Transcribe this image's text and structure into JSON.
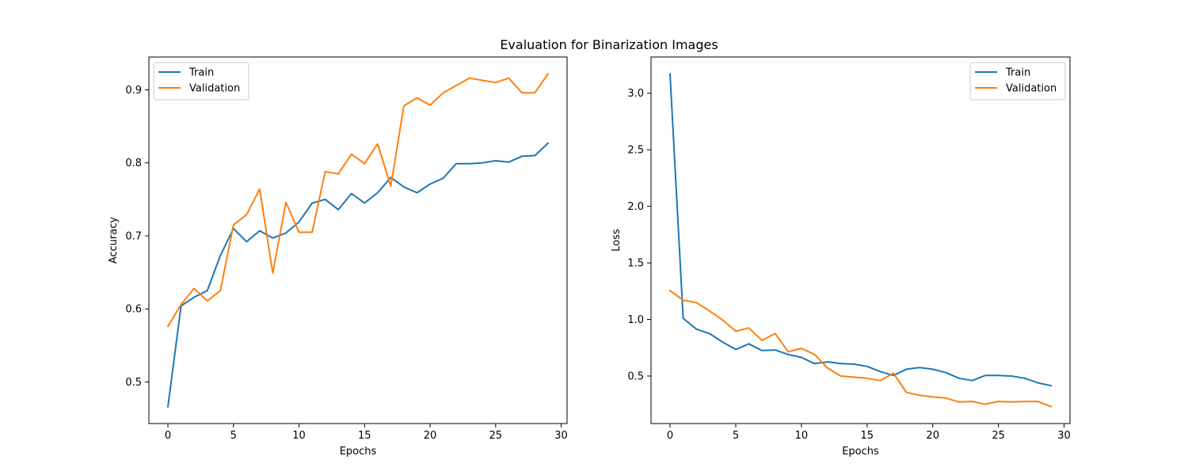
{
  "figure": {
    "title": "Evaluation for Binarization Images"
  },
  "colors": {
    "train": "#1f77b4",
    "validation": "#ff7f0e"
  },
  "chart_data": [
    {
      "type": "line",
      "title": "",
      "xlabel": "Epochs",
      "ylabel": "Accuracy",
      "xlim": [
        -1.45,
        30.45
      ],
      "ylim": [
        0.443,
        0.945
      ],
      "xticks": [
        0,
        5,
        10,
        15,
        20,
        25,
        30
      ],
      "yticks": [
        0.5,
        0.6,
        0.7,
        0.8,
        0.9
      ],
      "ytick_labels": [
        "0.5",
        "0.6",
        "0.7",
        "0.8",
        "0.9"
      ],
      "legend": "top-left",
      "grid": false,
      "x": [
        0,
        1,
        2,
        3,
        4,
        5,
        6,
        7,
        8,
        9,
        10,
        11,
        12,
        13,
        14,
        15,
        16,
        17,
        18,
        19,
        20,
        21,
        22,
        23,
        24,
        25,
        26,
        27,
        28,
        29
      ],
      "series": [
        {
          "name": "Train",
          "values": [
            0.466,
            0.604,
            0.616,
            0.625,
            0.673,
            0.71,
            0.692,
            0.707,
            0.697,
            0.704,
            0.719,
            0.745,
            0.75,
            0.736,
            0.758,
            0.745,
            0.759,
            0.78,
            0.767,
            0.759,
            0.771,
            0.779,
            0.799,
            0.799,
            0.8,
            0.803,
            0.801,
            0.809,
            0.81,
            0.827
          ]
        },
        {
          "name": "Validation",
          "values": [
            0.576,
            0.606,
            0.628,
            0.611,
            0.625,
            0.715,
            0.729,
            0.764,
            0.649,
            0.746,
            0.705,
            0.705,
            0.788,
            0.785,
            0.812,
            0.799,
            0.826,
            0.768,
            0.878,
            0.889,
            0.879,
            0.896,
            0.906,
            0.916,
            0.913,
            0.91,
            0.916,
            0.896,
            0.896,
            0.922
          ]
        }
      ]
    },
    {
      "type": "line",
      "title": "",
      "xlabel": "Epochs",
      "ylabel": "Loss",
      "xlim": [
        -1.45,
        30.45
      ],
      "ylim": [
        0.08,
        3.32
      ],
      "xticks": [
        0,
        5,
        10,
        15,
        20,
        25,
        30
      ],
      "yticks": [
        0.5,
        1.0,
        1.5,
        2.0,
        2.5,
        3.0
      ],
      "ytick_labels": [
        "0.5",
        "1.0",
        "1.5",
        "2.0",
        "2.5",
        "3.0"
      ],
      "legend": "top-right",
      "grid": false,
      "x": [
        0,
        1,
        2,
        3,
        4,
        5,
        6,
        7,
        8,
        9,
        10,
        11,
        12,
        13,
        14,
        15,
        16,
        17,
        18,
        19,
        20,
        21,
        22,
        23,
        24,
        25,
        26,
        27,
        28,
        29
      ],
      "series": [
        {
          "name": "Train",
          "values": [
            3.17,
            1.01,
            0.915,
            0.875,
            0.8,
            0.735,
            0.785,
            0.725,
            0.73,
            0.69,
            0.665,
            0.61,
            0.625,
            0.61,
            0.605,
            0.585,
            0.54,
            0.505,
            0.56,
            0.575,
            0.56,
            0.53,
            0.48,
            0.46,
            0.505,
            0.505,
            0.5,
            0.48,
            0.44,
            0.415
          ]
        },
        {
          "name": "Validation",
          "values": [
            1.255,
            1.17,
            1.15,
            1.075,
            0.995,
            0.895,
            0.925,
            0.815,
            0.875,
            0.715,
            0.745,
            0.69,
            0.57,
            0.5,
            0.49,
            0.48,
            0.46,
            0.525,
            0.355,
            0.33,
            0.315,
            0.305,
            0.27,
            0.275,
            0.25,
            0.275,
            0.27,
            0.275,
            0.275,
            0.23
          ]
        }
      ]
    }
  ]
}
